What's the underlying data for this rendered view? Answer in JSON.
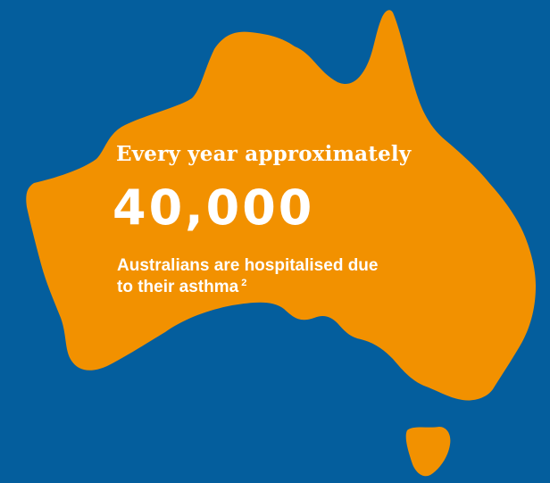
{
  "colors": {
    "background": "#045e9d",
    "map_fill": "#f29100",
    "text": "#ffffff"
  },
  "headline": "Every year approximately",
  "statistic": "40,000",
  "body_line_1": "Australians are hospitalised due",
  "body_line_2": "to their asthma",
  "reference": "2"
}
